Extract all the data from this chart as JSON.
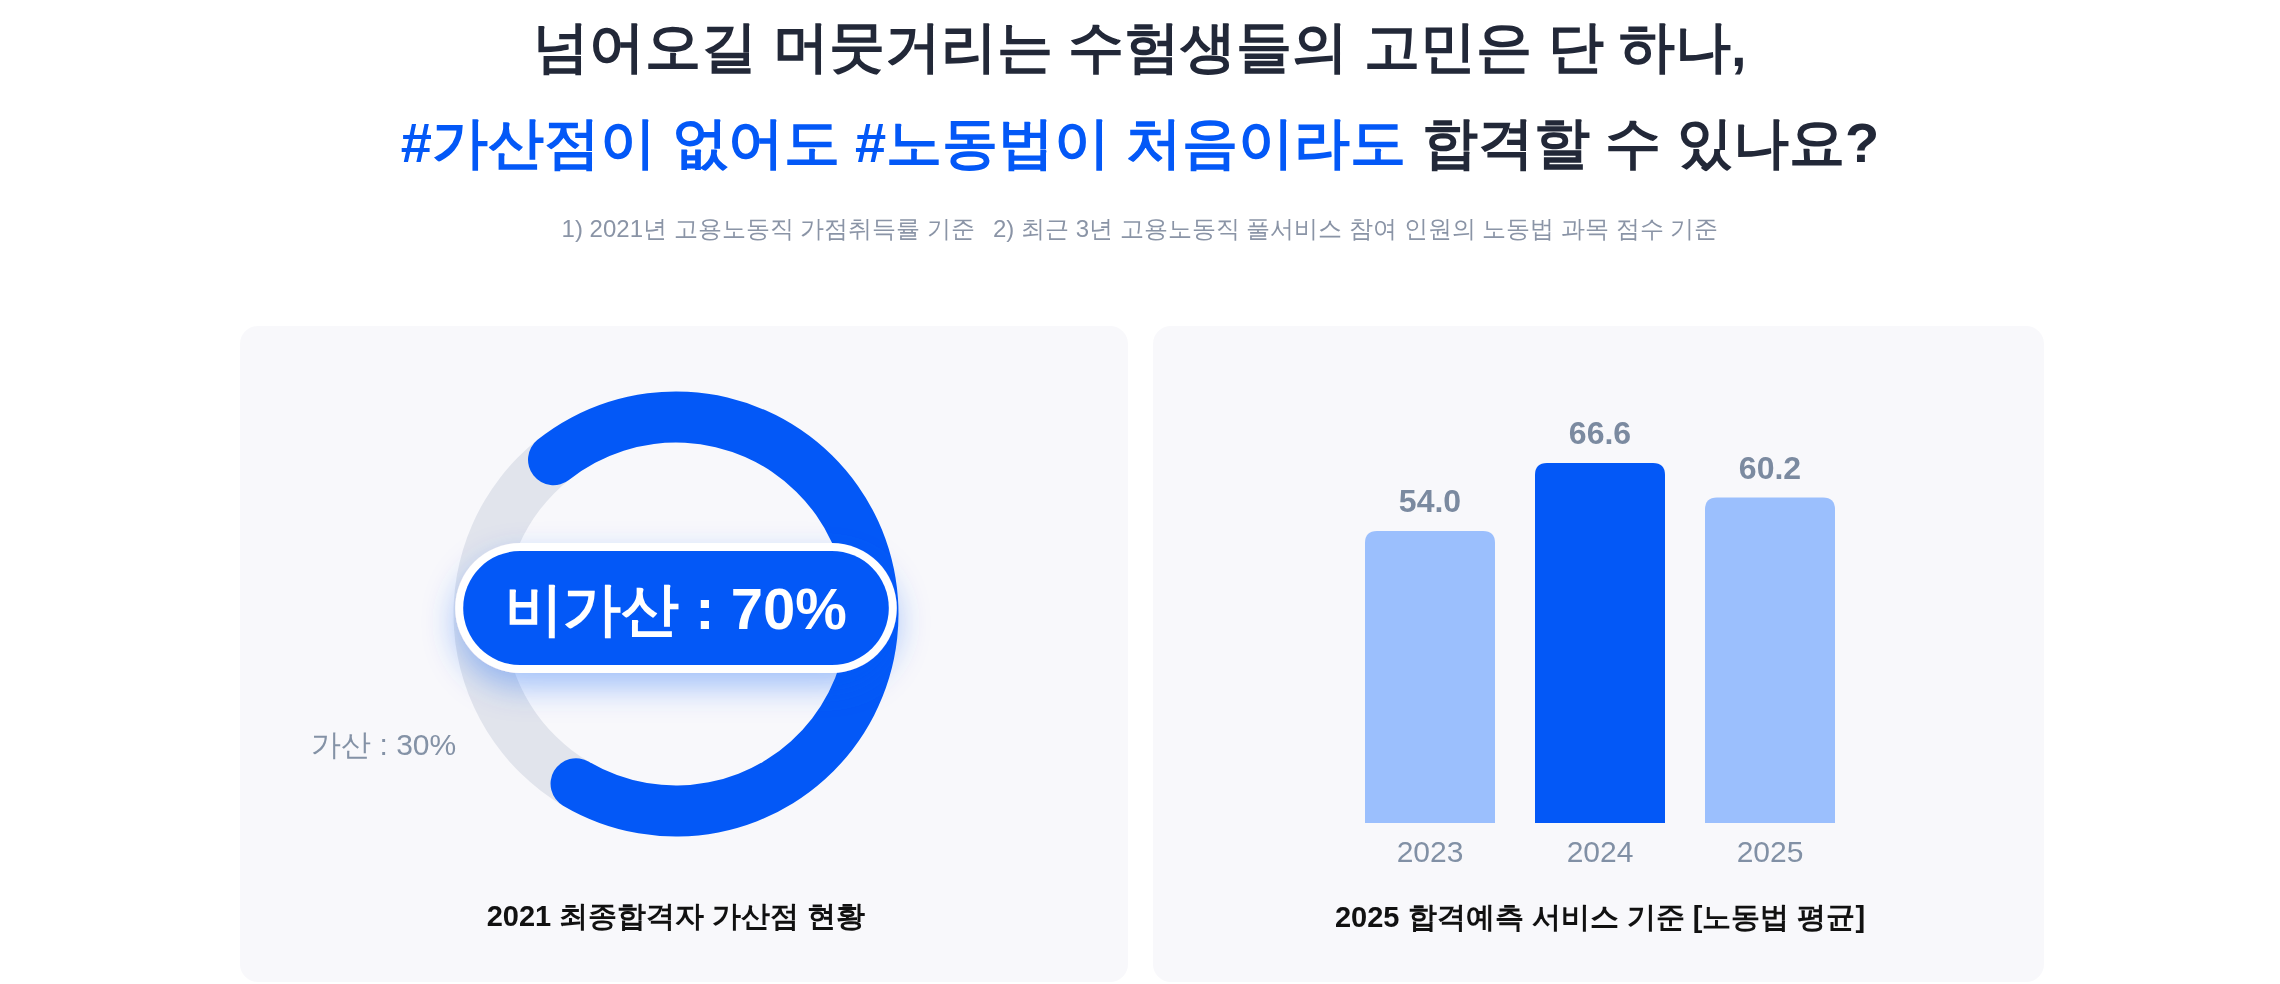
{
  "chart_data": [
    {
      "type": "other",
      "title": "넘어오길 머뭇거리는 수험생들의 고민은 단 하나,",
      "annotations": [
        "#가산점이 없어도 #노동법이 처음이라도",
        "합격할 수 있나요?",
        "1) 2021년 고용노동직 가점취득률 기준",
        "2) 최근 3년 고용노동직 풀서비스 참여 인원의 노동법 과목 점수 기준"
      ]
    },
    {
      "type": "donut",
      "title": "2021 최종합격자 가산점 현황",
      "categories": [
        "비가산 : 70%",
        "가산 : 30%"
      ],
      "values": [
        70,
        30
      ],
      "colors": [
        "#0358f7",
        "#e1e4ec"
      ]
    },
    {
      "type": "bar",
      "title": "2025 합격예측 서비스 기준 [노동법 평균]",
      "categories": [
        "2023",
        "2024",
        "2025"
      ],
      "values": [
        54.0,
        66.6,
        60.2
      ],
      "value_labels": [
        "54.0",
        "66.6",
        "60.2"
      ],
      "colors": [
        "#9bbffd",
        "#0358f7",
        "#9bbffd"
      ]
    }
  ]
}
